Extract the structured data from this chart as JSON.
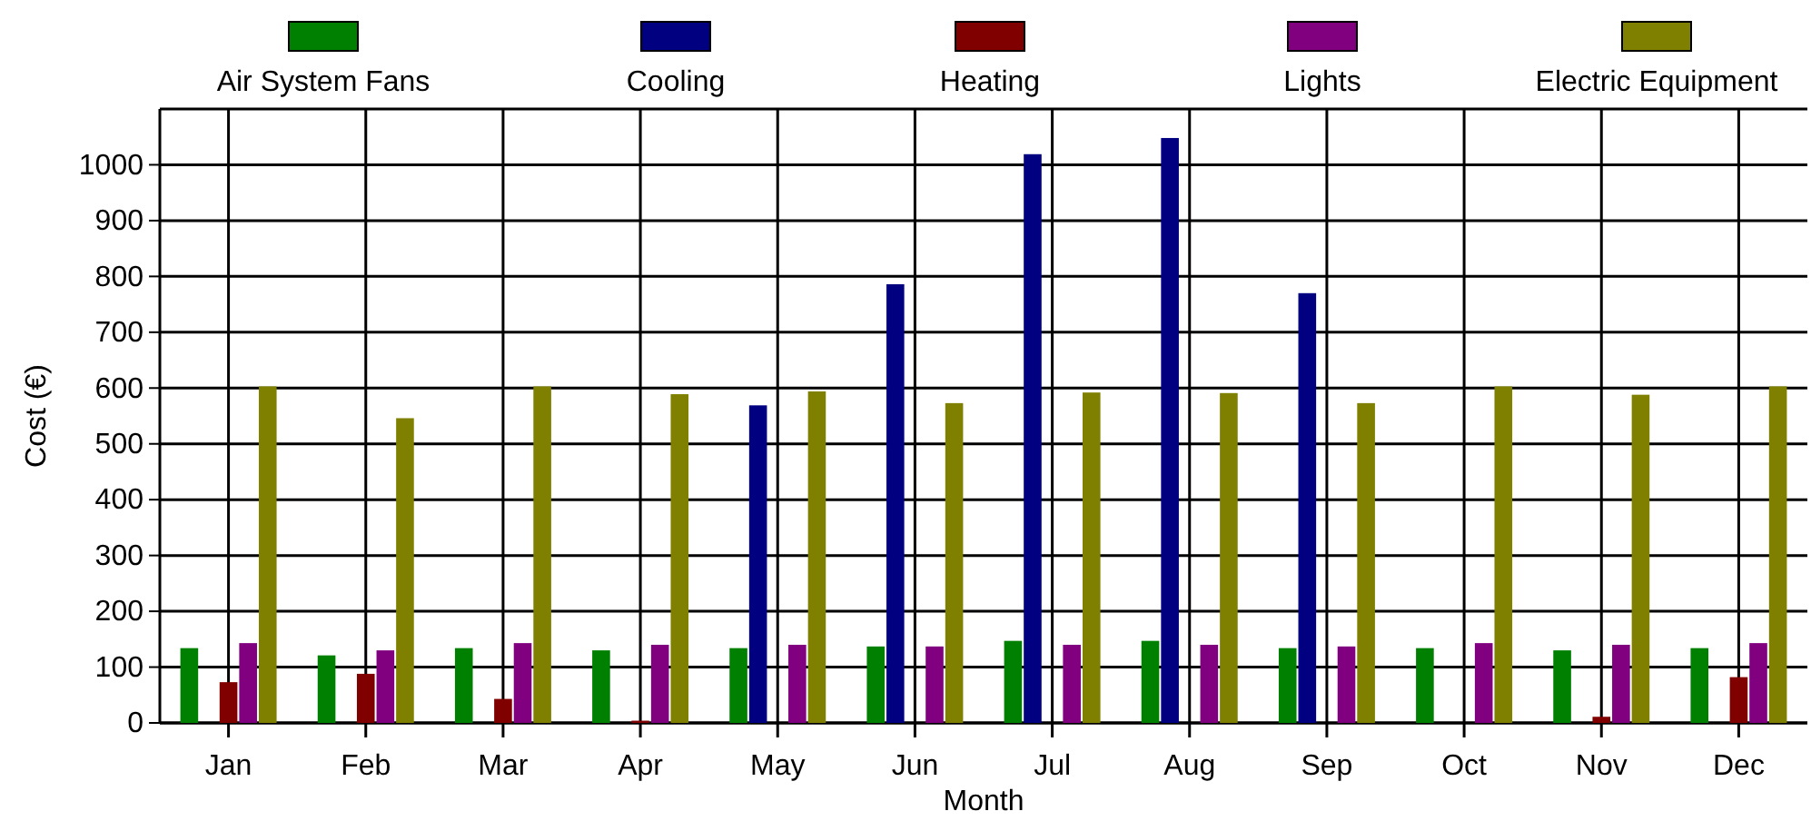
{
  "chart_data": {
    "type": "bar",
    "xlabel": "Month",
    "ylabel": "Cost (€)",
    "categories": [
      "Jan",
      "Feb",
      "Mar",
      "Apr",
      "May",
      "Jun",
      "Jul",
      "Aug",
      "Sep",
      "Oct",
      "Nov",
      "Dec"
    ],
    "series": [
      {
        "name": "Air System Fans",
        "color": "#008000",
        "values": [
          134,
          121,
          134,
          130,
          134,
          137,
          147,
          147,
          134,
          134,
          130,
          134
        ]
      },
      {
        "name": "Cooling",
        "color": "#000080",
        "values": [
          null,
          null,
          null,
          null,
          569,
          786,
          1019,
          1048,
          770,
          null,
          null,
          null
        ]
      },
      {
        "name": "Heating",
        "color": "#800000",
        "values": [
          73,
          88,
          43,
          4,
          null,
          null,
          null,
          null,
          null,
          null,
          11,
          82
        ]
      },
      {
        "name": "Lights",
        "color": "#800080",
        "values": [
          143,
          130,
          143,
          140,
          140,
          137,
          140,
          140,
          137,
          143,
          140,
          143
        ]
      },
      {
        "name": "Electric Equipment",
        "color": "#808000",
        "values": [
          603,
          546,
          603,
          589,
          594,
          573,
          592,
          591,
          573,
          603,
          588,
          603
        ]
      }
    ],
    "ylim": [
      0,
      1100
    ],
    "yticks": [
      0,
      100,
      200,
      300,
      400,
      500,
      600,
      700,
      800,
      900,
      1000
    ],
    "grid": true,
    "legend": "top"
  }
}
